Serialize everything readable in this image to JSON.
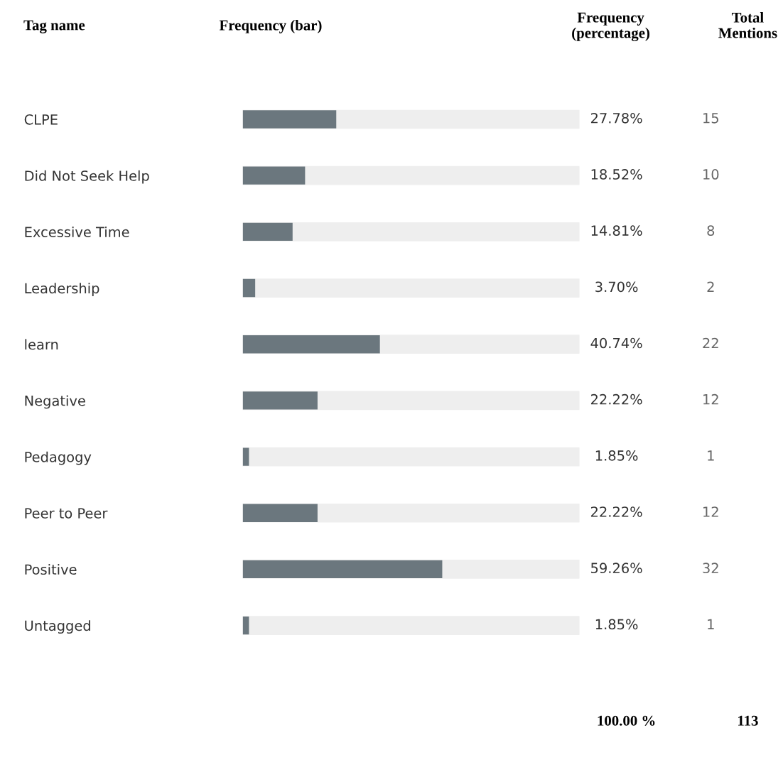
{
  "chart_data": {
    "type": "bar",
    "orientation": "horizontal",
    "categories": [
      "CLPE",
      "Did Not Seek Help",
      "Excessive Time",
      "Leadership",
      "learn",
      "Negative",
      "Pedagogy",
      "Peer to Peer",
      "Positive",
      "Untagged"
    ],
    "values": [
      27.78,
      18.52,
      14.81,
      3.7,
      40.74,
      22.22,
      1.85,
      22.22,
      59.26,
      1.85
    ],
    "value_labels": [
      "27.78%",
      "18.52%",
      "14.81%",
      "3.70%",
      "40.74%",
      "22.22%",
      "1.85%",
      "22.22%",
      "59.26%",
      "1.85%"
    ],
    "color": "#6b777e",
    "xlim": [
      0,
      100
    ],
    "tick_labels": "y",
    "grid": false,
    "legend": false,
    "annotations": [
      "Tag name",
      "Frequency (bar)",
      "Frequency\n(percentage)",
      "Total\nMentions",
      "100.00 %",
      "113",
      "15",
      "10",
      "8",
      "2",
      "22",
      "12",
      "1",
      "12",
      "32",
      "1"
    ]
  }
}
